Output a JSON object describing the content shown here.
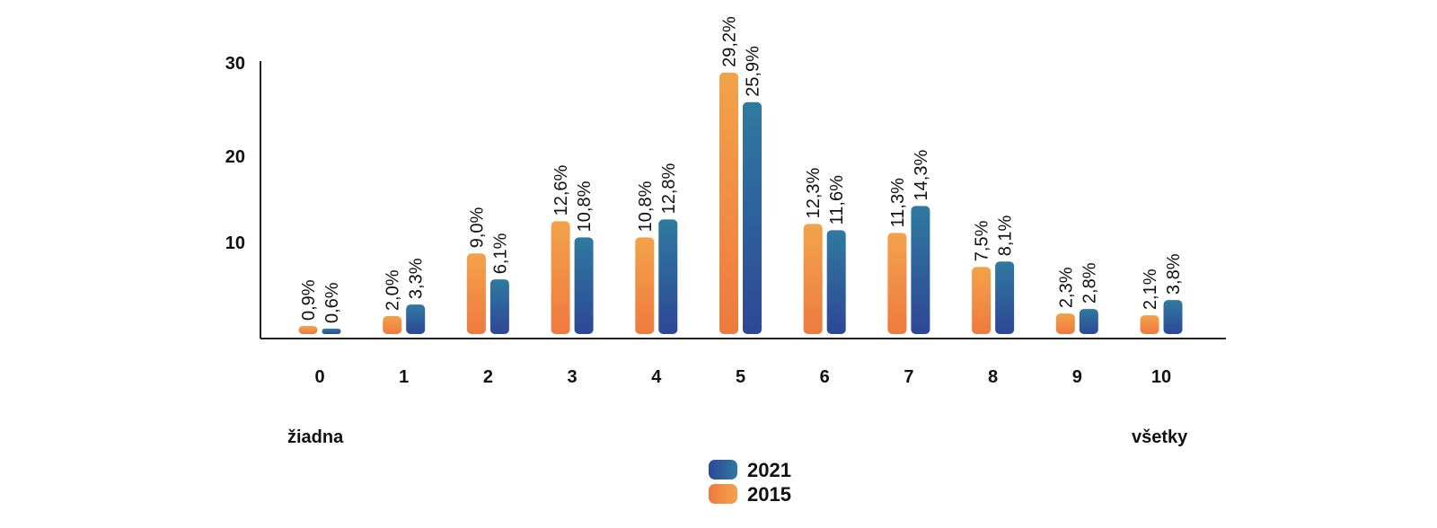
{
  "chart_data": {
    "type": "bar",
    "categories": [
      "0",
      "1",
      "2",
      "3",
      "4",
      "5",
      "6",
      "7",
      "8",
      "9",
      "10"
    ],
    "series": [
      {
        "name": "2015",
        "values": [
          0.9,
          2.0,
          9.0,
          12.6,
          10.8,
          29.2,
          12.3,
          11.3,
          7.5,
          2.3,
          2.1
        ],
        "labels": [
          "0,9%",
          "2,0%",
          "9,0%",
          "12,6%",
          "10,8%",
          "29,2%",
          "12,3%",
          "11,3%",
          "7,5%",
          "2,3%",
          "2,1%"
        ]
      },
      {
        "name": "2021",
        "values": [
          0.6,
          3.3,
          6.1,
          10.8,
          12.8,
          25.9,
          11.6,
          14.3,
          8.1,
          2.8,
          3.8
        ],
        "labels": [
          "0,6%",
          "3,3%",
          "6,1%",
          "10,8%",
          "12,8%",
          "25,9%",
          "11,6%",
          "14,3%",
          "8,1%",
          "2,8%",
          "3,8%"
        ]
      }
    ],
    "yticks": [
      "10",
      "20",
      "30"
    ],
    "ylim": [
      0,
      30
    ],
    "low_end_label": "žiadna",
    "high_end_label": "všetky",
    "legend_entries": [
      {
        "name": "2021"
      },
      {
        "name": "2015"
      }
    ],
    "legend_position": "bottom-center",
    "colors": {
      "2015_top": "#f3a24a",
      "2015_bottom": "#ee7a3f",
      "2021_top": "#2f7aa0",
      "2021_bottom": "#2e4796"
    },
    "grid": false
  }
}
